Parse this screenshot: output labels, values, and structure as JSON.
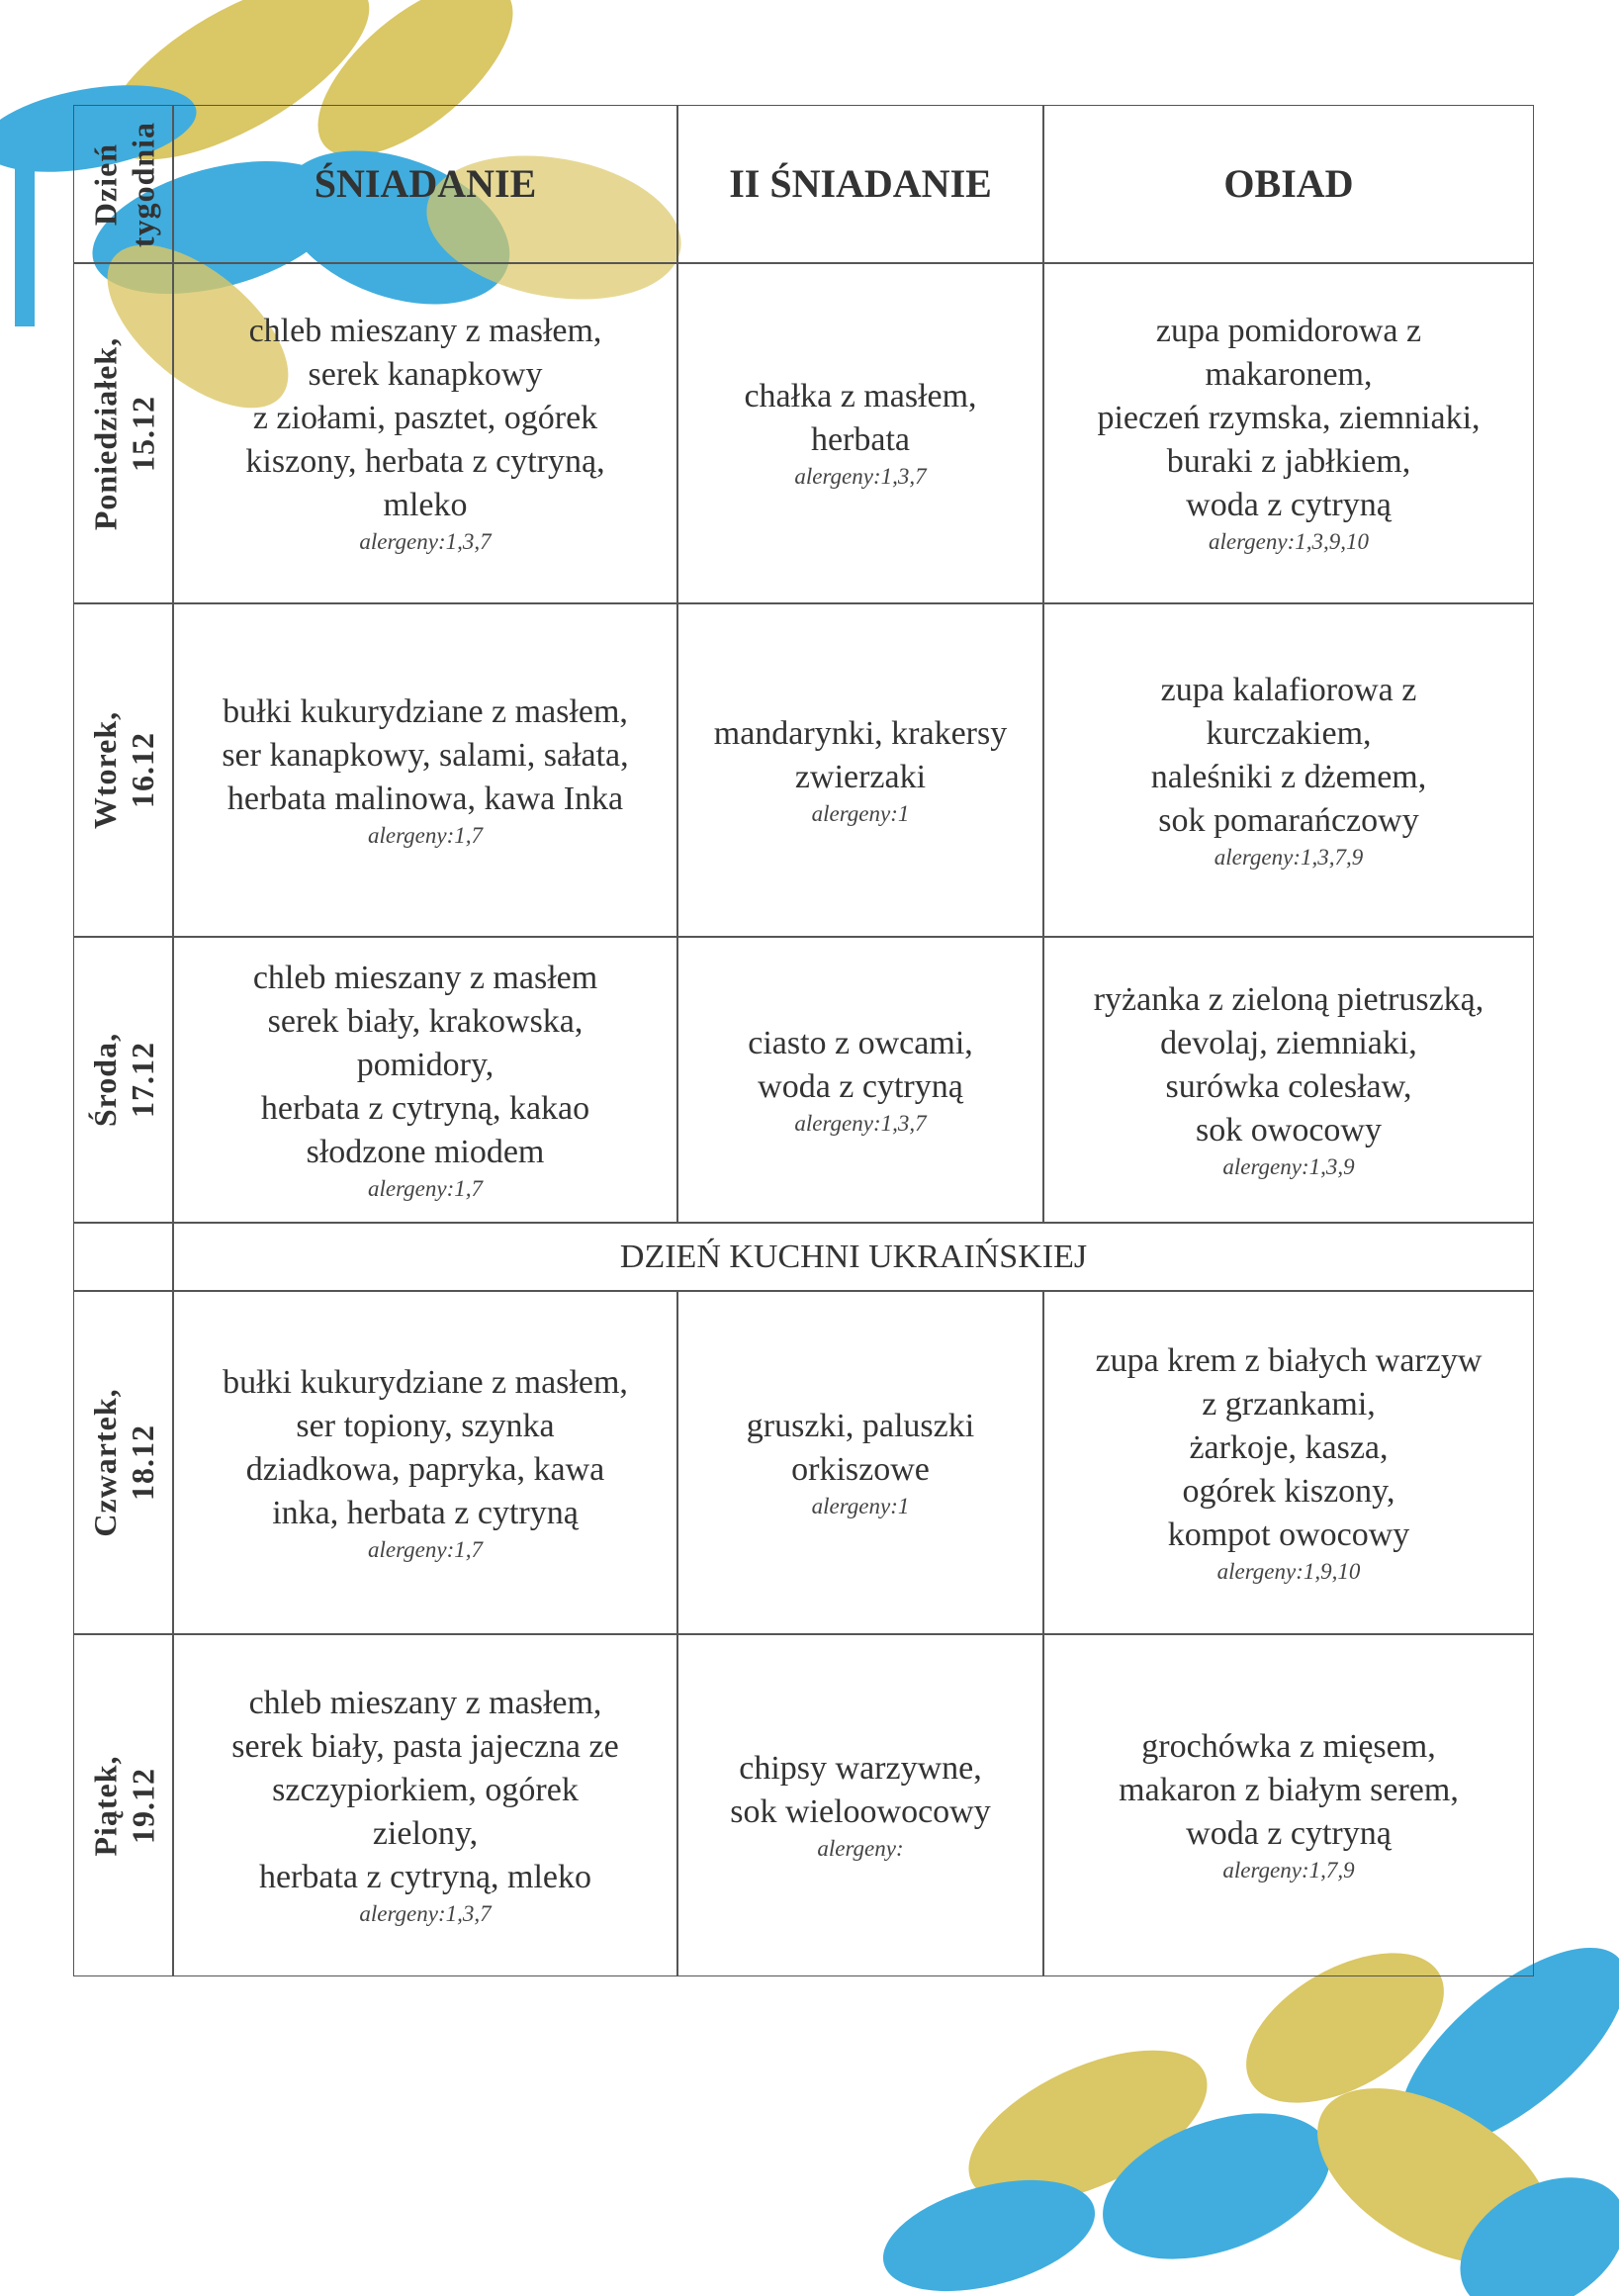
{
  "header": {
    "day_column": [
      "Dzień",
      "tygodnia"
    ],
    "columns": [
      "ŚNIADANIE",
      "II ŚNIADANIE",
      "OBIAD"
    ]
  },
  "banner": "DZIEŃ KUCHNI UKRAIŃSKIEJ",
  "days": [
    {
      "day": "Poniedziałek,",
      "date": "15.12",
      "meals": [
        {
          "lines": [
            "chleb mieszany z masłem,",
            "serek kanapkowy",
            "z ziołami, pasztet, ogórek",
            "kiszony, herbata z cytryną,",
            "mleko"
          ],
          "allergens": "alergeny:1,3,7"
        },
        {
          "lines": [
            "chałka z masłem,",
            "herbata"
          ],
          "allergens": "alergeny:1,3,7"
        },
        {
          "lines": [
            "zupa pomidorowa z",
            "makaronem,",
            "pieczeń rzymska, ziemniaki,",
            "buraki z jabłkiem,",
            "woda z cytryną"
          ],
          "allergens": "alergeny:1,3,9,10"
        }
      ]
    },
    {
      "day": "Wtorek,",
      "date": "16.12",
      "meals": [
        {
          "lines": [
            "bułki kukurydziane z masłem,",
            "ser kanapkowy, salami, sałata,",
            "herbata malinowa, kawa Inka"
          ],
          "allergens": "alergeny:1,7"
        },
        {
          "lines": [
            "mandarynki, krakersy",
            "zwierzaki"
          ],
          "allergens": "alergeny:1"
        },
        {
          "lines": [
            "zupa kalafiorowa z",
            "kurczakiem,",
            "naleśniki z dżemem,",
            "sok pomarańczowy"
          ],
          "allergens": "alergeny:1,3,7,9"
        }
      ]
    },
    {
      "day": "Środa,",
      "date": "17.12",
      "meals": [
        {
          "lines": [
            "chleb mieszany z masłem",
            "serek biały, krakowska,",
            "pomidory,",
            "herbata z cytryną, kakao",
            "słodzone miodem"
          ],
          "allergens": "alergeny:1,7"
        },
        {
          "lines": [
            "ciasto z owcami,",
            "woda z cytryną"
          ],
          "allergens": "alergeny:1,3,7"
        },
        {
          "lines": [
            "ryżanka z zieloną pietruszką,",
            "devolaj, ziemniaki,",
            "surówka colesław,",
            "sok owocowy"
          ],
          "allergens": "alergeny:1,3,9"
        }
      ]
    },
    {
      "day": "Czwartek,",
      "date": "18.12",
      "meals": [
        {
          "lines": [
            "bułki kukurydziane z masłem,",
            "ser topiony, szynka",
            "dziadkowa, papryka, kawa",
            "inka, herbata z cytryną"
          ],
          "allergens": "alergeny:1,7"
        },
        {
          "lines": [
            "gruszki, paluszki",
            "orkiszowe"
          ],
          "allergens": "alergeny:1"
        },
        {
          "lines": [
            "zupa krem z białych warzyw",
            "z grzankami,",
            "żarkoje, kasza,",
            "ogórek kiszony,",
            "kompot owocowy"
          ],
          "allergens": "alergeny:1,9,10"
        }
      ]
    },
    {
      "day": "Piątek,",
      "date": "19.12",
      "meals": [
        {
          "lines": [
            "chleb mieszany z masłem,",
            "serek biały, pasta jajeczna ze",
            "szczypiorkiem, ogórek",
            "zielony,",
            "herbata z cytryną, mleko"
          ],
          "allergens": "alergeny:1,3,7"
        },
        {
          "lines": [
            "chipsy warzywne,",
            "sok wieloowocowy"
          ],
          "allergens": "alergeny:"
        },
        {
          "lines": [
            "grochówka z mięsem,",
            "makaron z białym serem,",
            "woda z cytryną"
          ],
          "allergens": "alergeny:1,7,9"
        }
      ]
    }
  ]
}
